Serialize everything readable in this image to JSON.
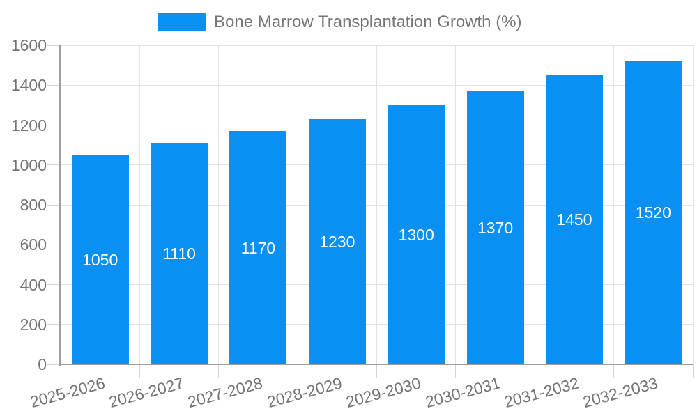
{
  "chart_data": {
    "type": "bar",
    "title": "Bone Marrow Transplantation Growth (%)",
    "categories": [
      "2025-2026",
      "2026-2027",
      "2027-2028",
      "2028-2029",
      "2029-2030",
      "2030-2031",
      "2031-2032",
      "2032-2033"
    ],
    "values": [
      1050,
      1110,
      1170,
      1230,
      1300,
      1370,
      1450,
      1520
    ],
    "bar_value_labels": [
      "1050",
      "1110",
      "1170",
      "1230",
      "1300",
      "1370",
      "1450",
      "1520"
    ],
    "xlabel": "",
    "ylabel": "",
    "ylim": [
      0,
      1600
    ],
    "yticks": [
      0,
      200,
      400,
      600,
      800,
      1000,
      1200,
      1400,
      1600
    ],
    "grid": true,
    "legend_position": "top-center",
    "colors": {
      "bar": "#0a8ff2",
      "axis_text": "#757575",
      "value_label": "#ffffff",
      "axis_line": "#9e9e9e",
      "gridline": "#e3e3e3",
      "tick": "#d4d4d4",
      "background": "#ffffff"
    }
  }
}
